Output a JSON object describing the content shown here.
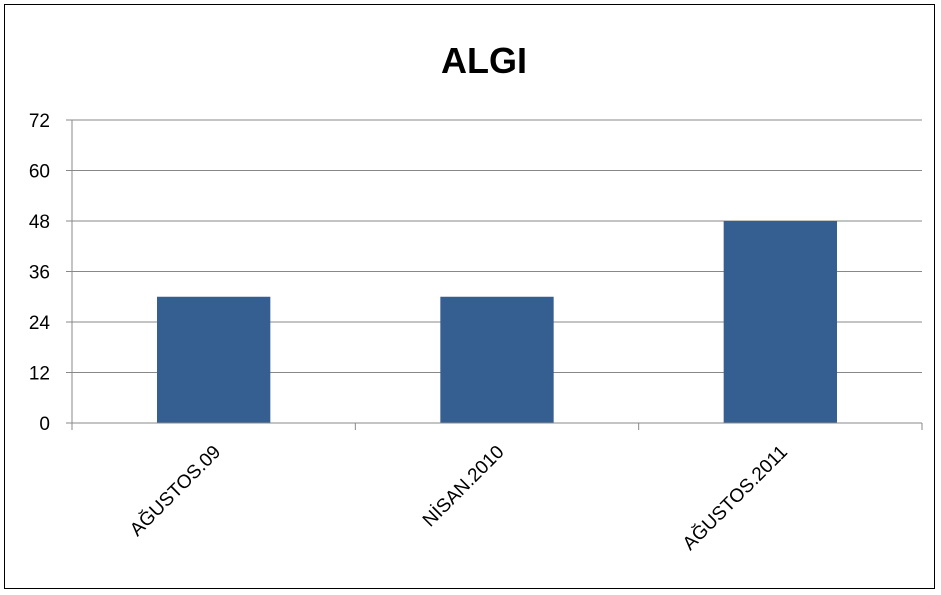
{
  "chart_data": {
    "type": "bar",
    "title": "ALGI",
    "xlabel": "",
    "ylabel": "",
    "categories": [
      "AĞUSTOS.09",
      "NİSAN.2010",
      "AĞUSTOS.2011"
    ],
    "series": [
      {
        "values": [
          30,
          30,
          48
        ]
      }
    ],
    "ylim": [
      0,
      72
    ],
    "yticks": [
      0,
      12,
      24,
      36,
      48,
      60,
      72
    ],
    "grid": true,
    "legend": "none",
    "bar_color": "#355F91",
    "grid_color": "#888888",
    "axis_color": "#888888"
  }
}
